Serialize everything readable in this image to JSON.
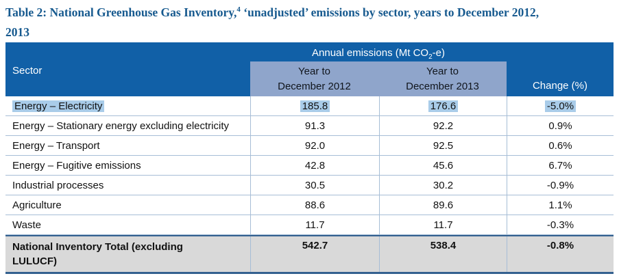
{
  "title": {
    "line1_prefix": "Table 2: National Greenhouse Gas Inventory,",
    "footnote_marker": "4",
    "line1_suffix": " ‘unadjusted’ emissions by sector, years to December 2012,",
    "line2": "2013"
  },
  "table": {
    "header": {
      "sector": "Sector",
      "annual_prefix": "Annual emissions (Mt CO",
      "annual_sub": "2",
      "annual_suffix": "-e)",
      "col2012_line1": "Year to",
      "col2012_line2": "December 2012",
      "col2013_line1": "Year to",
      "col2013_line2": "December 2013",
      "change": "Change (%)"
    },
    "rows": [
      {
        "sector": "Energy – Electricity",
        "y2012": "185.8",
        "y2013": "176.6",
        "change": "-5.0%",
        "highlighted": true
      },
      {
        "sector": "Energy – Stationary energy excluding electricity",
        "y2012": "91.3",
        "y2013": "92.2",
        "change": "0.9%",
        "highlighted": false
      },
      {
        "sector": "Energy – Transport",
        "y2012": "92.0",
        "y2013": "92.5",
        "change": "0.6%",
        "highlighted": false
      },
      {
        "sector": "Energy – Fugitive emissions",
        "y2012": "42.8",
        "y2013": "45.6",
        "change": "6.7%",
        "highlighted": false
      },
      {
        "sector": "Industrial processes",
        "y2012": "30.5",
        "y2013": "30.2",
        "change": "-0.9%",
        "highlighted": false
      },
      {
        "sector": "Agriculture",
        "y2012": "88.6",
        "y2013": "89.6",
        "change": "1.1%",
        "highlighted": false
      },
      {
        "sector": "Waste",
        "y2012": "11.7",
        "y2013": "11.7",
        "change": "-0.3%",
        "highlighted": false
      }
    ],
    "total": {
      "sector": "National Inventory Total (excluding LULUCF)",
      "y2012": "542.7",
      "y2013": "538.4",
      "change": "-0.8%"
    }
  },
  "colors": {
    "header_blue": "#1160a7",
    "subheader_blue": "#8fa5cb",
    "selection_highlight": "#a9cce9",
    "grid_line": "#a6bdd6",
    "total_row_gray": "#d9d9d9",
    "total_border_blue": "#33608f",
    "title_blue": "#175a8f"
  }
}
